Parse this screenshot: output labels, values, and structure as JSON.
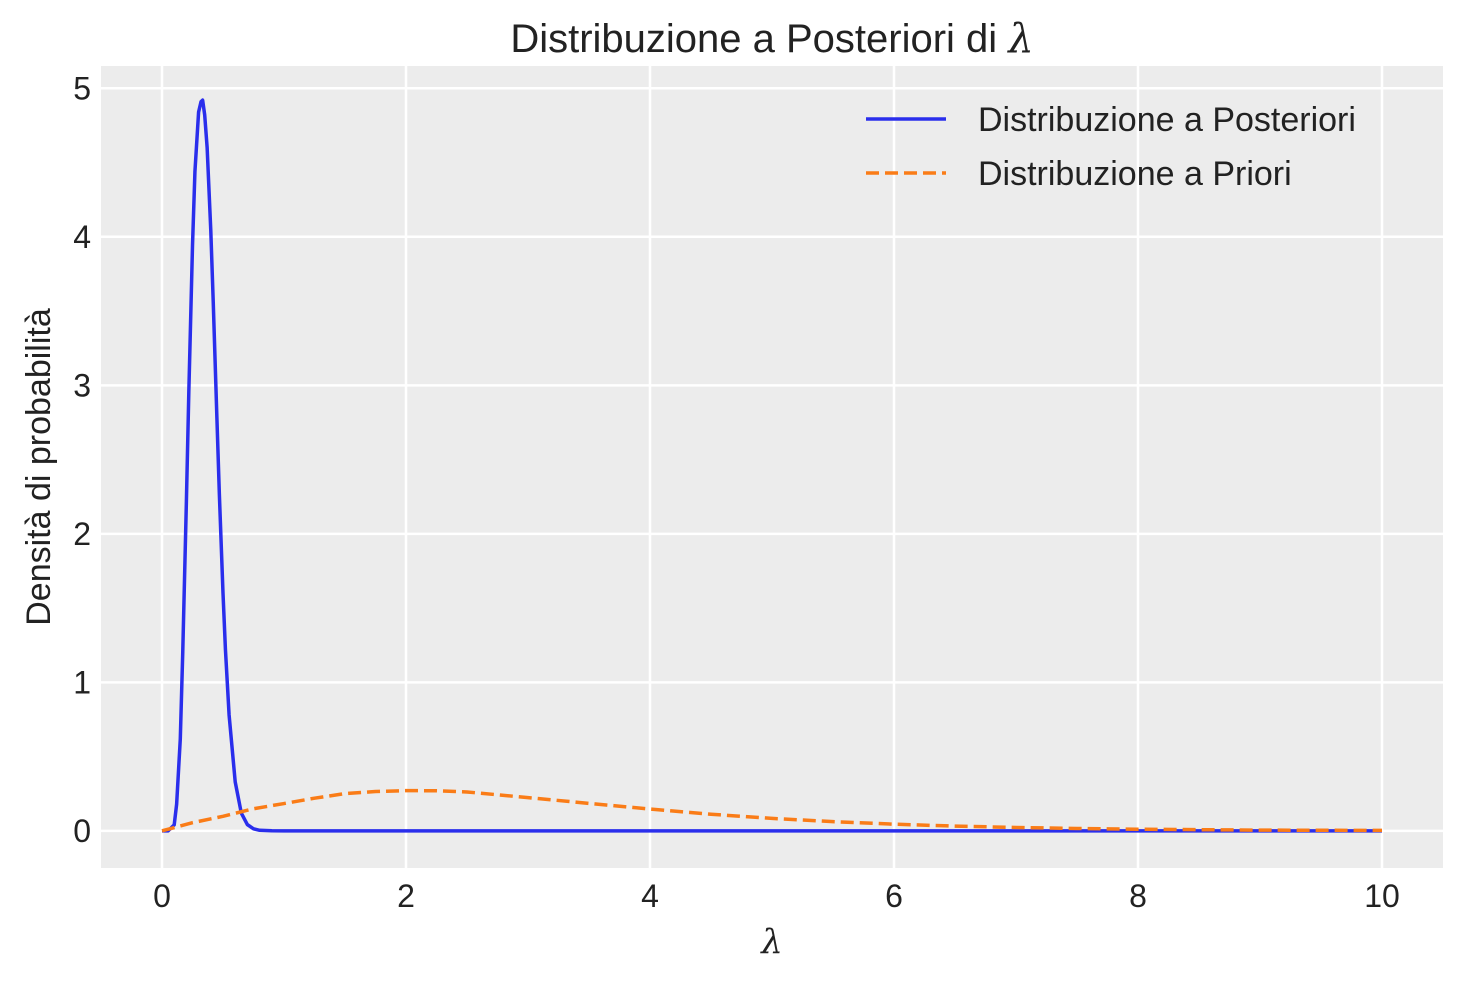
{
  "chart_data": {
    "type": "line",
    "title": "Distribuzione a Posteriori di",
    "title_symbol": "λ",
    "xlabel": "λ",
    "ylabel": "Densità di probabilità",
    "xlim": [
      -0.5,
      10.5
    ],
    "ylim": [
      -0.25,
      5.15
    ],
    "xticks": [
      0,
      2,
      4,
      6,
      8,
      10
    ],
    "yticks": [
      0,
      1,
      2,
      3,
      4,
      5
    ],
    "grid": true,
    "legend_position": "top-right",
    "series": [
      {
        "name": "Distribuzione a Posteriori",
        "color": "#2a2eec",
        "dash": "solid",
        "x": [
          0.0,
          0.05,
          0.1,
          0.12,
          0.15,
          0.17,
          0.2,
          0.22,
          0.25,
          0.27,
          0.3,
          0.32,
          0.333,
          0.35,
          0.37,
          0.4,
          0.42,
          0.45,
          0.47,
          0.5,
          0.52,
          0.55,
          0.6,
          0.65,
          0.7,
          0.75,
          0.8,
          0.9,
          1.0,
          1.5,
          2.0,
          4.0,
          6.0,
          8.0,
          10.0
        ],
        "y": [
          0.0,
          0.0,
          0.04,
          0.18,
          0.62,
          1.2,
          2.22,
          2.96,
          3.94,
          4.44,
          4.84,
          4.91,
          4.92,
          4.82,
          4.6,
          4.04,
          3.56,
          2.78,
          2.27,
          1.6,
          1.22,
          0.78,
          0.33,
          0.12,
          0.042,
          0.014,
          0.004,
          0.0005,
          0.0,
          0.0,
          0.0,
          0.0,
          0.0,
          0.0,
          0.0
        ]
      },
      {
        "name": "Distribuzione a Priori",
        "color": "#fa7c17",
        "dash": "dashed",
        "x": [
          0.0,
          0.25,
          0.5,
          0.75,
          1.0,
          1.25,
          1.5,
          1.75,
          2.0,
          2.25,
          2.5,
          3.0,
          3.5,
          4.0,
          4.5,
          5.0,
          5.5,
          6.0,
          6.5,
          7.0,
          7.5,
          8.0,
          8.5,
          9.0,
          9.5,
          10.0
        ],
        "y": [
          0.0,
          0.055,
          0.098,
          0.149,
          0.184,
          0.22,
          0.251,
          0.265,
          0.271,
          0.27,
          0.262,
          0.224,
          0.185,
          0.147,
          0.112,
          0.084,
          0.062,
          0.045,
          0.032,
          0.023,
          0.016,
          0.011,
          0.008,
          0.005,
          0.004,
          0.003
        ]
      }
    ]
  }
}
